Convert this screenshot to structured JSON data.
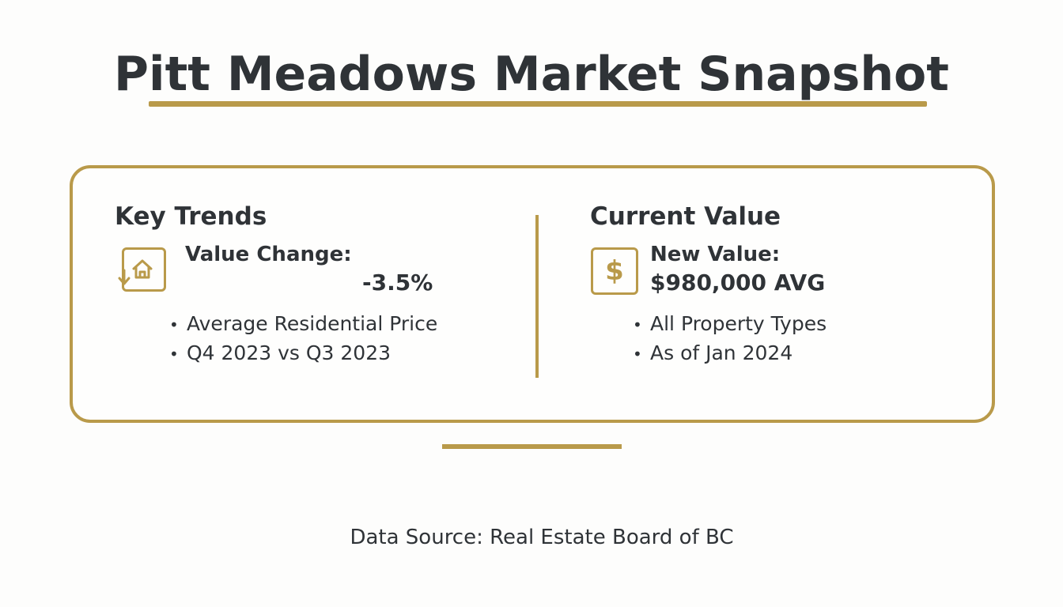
{
  "title": "Pitt Meadows Market Snapshot",
  "colors": {
    "accent": "#b99a4a",
    "text": "#2f3337",
    "background": "#fdfdfc"
  },
  "key_trends": {
    "heading": "Key Trends",
    "icon": "house-down-arrow-icon",
    "label": "Value Change:",
    "value": "-3.5%",
    "bullets": [
      "Average Residential Price",
      "Q4 2023 vs Q3 2023"
    ]
  },
  "current_value": {
    "heading": "Current Value",
    "icon": "dollar-icon",
    "label": "New Value:",
    "value": "$980,000 AVG",
    "bullets": [
      "All Property Types",
      "As of Jan 2024"
    ]
  },
  "footer": {
    "source": "Data Source: Real Estate Board of BC"
  }
}
